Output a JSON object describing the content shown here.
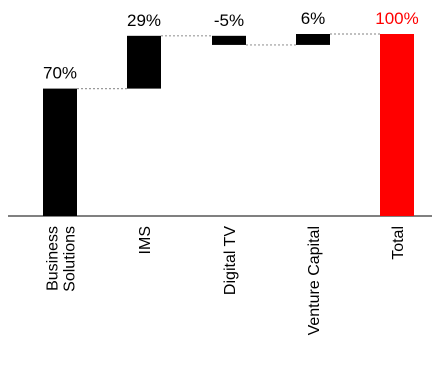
{
  "chart_data": {
    "type": "waterfall",
    "categories": [
      "Business Solutions",
      "IMS",
      "Digital TV",
      "Venture Capital",
      "Total"
    ],
    "category_lines": [
      [
        "Business",
        "Solutions"
      ],
      [
        "IMS"
      ],
      [
        "Digital TV"
      ],
      [
        "Venture Capital"
      ],
      [
        "Total"
      ]
    ],
    "values": [
      70,
      29,
      -5,
      6,
      100
    ],
    "labels": [
      "70%",
      "29%",
      "-5%",
      "6%",
      "100%"
    ],
    "total_index": 4,
    "ylim": [
      0,
      100
    ],
    "unit": "%",
    "colors": {
      "bar": "#000000",
      "total": "#ff0000",
      "label": "#000000",
      "total_label": "#ff0000",
      "connector": "#9a9a9a",
      "axis": "#000000"
    },
    "connectors": true
  }
}
